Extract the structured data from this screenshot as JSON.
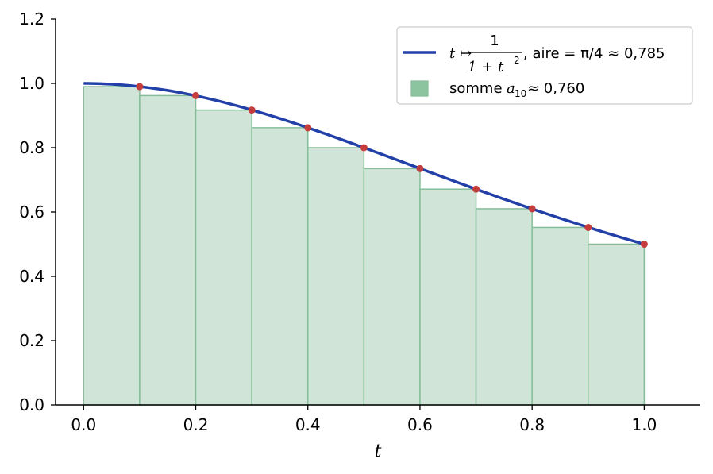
{
  "chart_data": {
    "type": "bar",
    "x_edges": [
      0.0,
      0.1,
      0.2,
      0.3,
      0.4,
      0.5,
      0.6,
      0.7,
      0.8,
      0.9,
      1.0
    ],
    "bar_heights": [
      0.99,
      0.962,
      0.917,
      0.862,
      0.8,
      0.735,
      0.671,
      0.61,
      0.552,
      0.5
    ],
    "points": {
      "x": [
        0.1,
        0.2,
        0.3,
        0.4,
        0.5,
        0.6,
        0.7,
        0.8,
        0.9,
        1.0
      ],
      "y": [
        0.99,
        0.962,
        0.917,
        0.862,
        0.8,
        0.735,
        0.671,
        0.61,
        0.552,
        0.5
      ]
    },
    "curve": {
      "formula": "1/(1+t^2)",
      "x_range": [
        0.0,
        1.0
      ]
    },
    "xlabel": "t",
    "ylabel": "",
    "xlim": [
      -0.05,
      1.1
    ],
    "ylim": [
      0.0,
      1.2
    ],
    "x_ticks": [
      "0.0",
      "0.2",
      "0.4",
      "0.6",
      "0.8",
      "1.0"
    ],
    "y_ticks": [
      "0.0",
      "0.2",
      "0.4",
      "0.6",
      "0.8",
      "1.0",
      "1.2"
    ],
    "grid": false,
    "legend": {
      "placement": "top-right",
      "curve_entry": {
        "prefix": "t ↦",
        "numerator": "1",
        "denominator_base": "1 + t",
        "denominator_exp": "2",
        "suffix": ", aire  = π/4 ≈ 0,785"
      },
      "bar_entry": {
        "prefix": "somme ",
        "symbol": "a",
        "subscript": "10",
        "suffix": " ≈ 0,760"
      }
    },
    "colors": {
      "curve": "#2340a8",
      "bar_fill": "#d0e5d8",
      "bar_edge": "#85bd98",
      "legend_patch": "#8cc4a0",
      "points": "#c43c3c"
    }
  }
}
